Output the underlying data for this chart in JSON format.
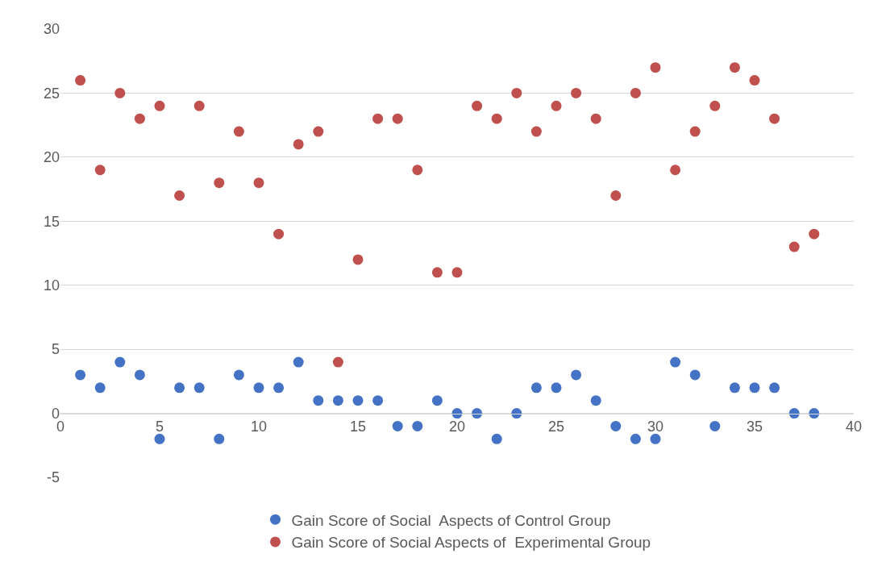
{
  "chart_data": {
    "type": "scatter",
    "x": [
      1,
      2,
      3,
      4,
      5,
      6,
      7,
      8,
      9,
      10,
      11,
      12,
      13,
      14,
      15,
      16,
      17,
      18,
      19,
      20,
      21,
      22,
      23,
      24,
      25,
      26,
      27,
      28,
      29,
      30,
      31,
      32,
      33,
      34,
      35,
      36,
      37,
      38
    ],
    "series": [
      {
        "name": "Gain Score of Social  Aspects of Control Group",
        "color": "#4472c4",
        "values": [
          3,
          2,
          4,
          3,
          -2,
          2,
          2,
          -2,
          3,
          2,
          2,
          4,
          1,
          1,
          1,
          1,
          -1,
          -1,
          1,
          0,
          0,
          -2,
          0,
          2,
          2,
          3,
          1,
          -1,
          -2,
          -2,
          4,
          3,
          -1,
          2,
          2,
          2,
          0,
          0
        ]
      },
      {
        "name": "Gain Score of Social Aspects of  Experimental Group",
        "color": "#c0504d",
        "values": [
          26,
          19,
          25,
          23,
          24,
          17,
          24,
          18,
          22,
          18,
          14,
          21,
          22,
          4,
          12,
          23,
          23,
          19,
          11,
          11,
          24,
          23,
          25,
          22,
          24,
          25,
          23,
          17,
          25,
          27,
          19,
          22,
          24,
          27,
          26,
          23,
          13,
          14
        ]
      }
    ],
    "xlim": [
      0,
      40
    ],
    "xticks": [
      0,
      5,
      10,
      15,
      20,
      25,
      30,
      35,
      40
    ],
    "ylim": [
      -5,
      30
    ],
    "yticks": [
      -5,
      0,
      5,
      10,
      15,
      20,
      25,
      30
    ],
    "grid": "y",
    "legend": "bottom",
    "marker": "circle"
  }
}
